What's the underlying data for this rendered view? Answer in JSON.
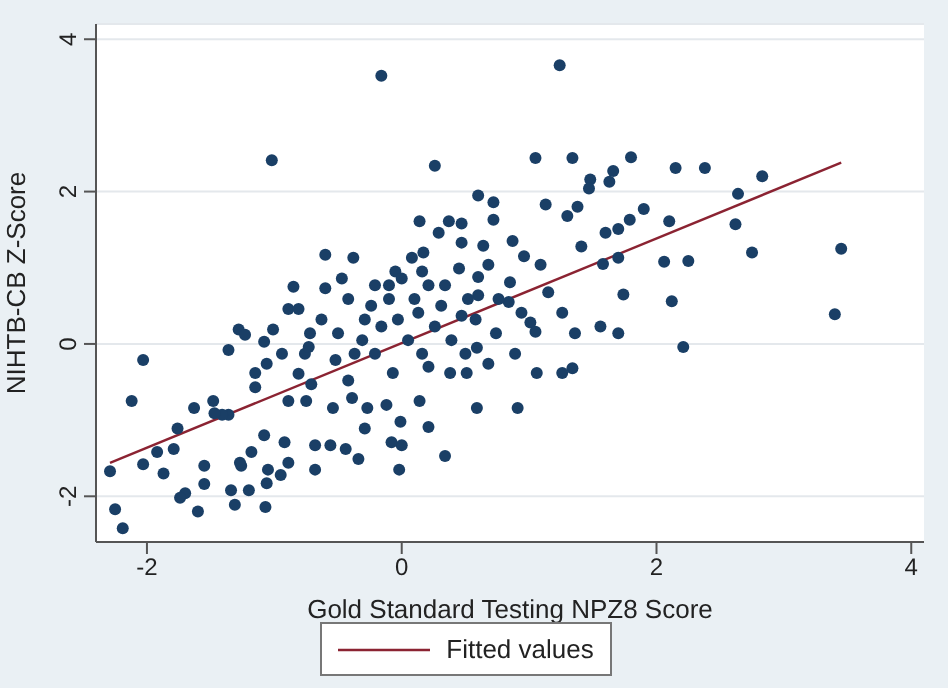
{
  "chart_data": {
    "type": "scatter",
    "xlabel": "Gold Standard Testing NPZ8 Score",
    "ylabel": "NIHTB-CB Z-Score",
    "xlim": [
      -2.4,
      4.1
    ],
    "ylim": [
      -2.6,
      4.2
    ],
    "xticks": [
      -2,
      0,
      2,
      4
    ],
    "yticks": [
      -2,
      0,
      2,
      4
    ],
    "grid": "y",
    "legend": "bottom",
    "series": [
      {
        "marker": "circle",
        "color": "#1a3f66",
        "x": [
          -0.16,
          1.24,
          -1.02,
          0.26,
          1.05,
          1.34,
          1.8,
          2.15,
          2.38,
          2.83,
          2.64,
          2.62,
          2.75,
          3.45,
          3.4,
          2.21,
          2.12,
          2.06,
          2.25,
          2.1,
          1.9,
          1.79,
          1.66,
          1.63,
          1.48,
          1.47,
          1.38,
          1.3,
          1.13,
          1.6,
          1.7,
          1.41,
          1.7,
          1.58,
          1.74,
          1.56,
          1.7,
          1.34,
          1.26,
          1.06,
          1.36,
          1.26,
          1.15,
          1.09,
          0.96,
          0.87,
          0.72,
          0.72,
          0.6,
          0.47,
          0.37,
          0.29,
          0.14,
          0.17,
          0.47,
          0.64,
          0.6,
          0.68,
          0.85,
          0.84,
          0.74,
          0.89,
          0.68,
          0.59,
          0.91,
          0.59,
          0.34,
          0.21,
          0.14,
          -0.01,
          0,
          -0.02,
          -0.08,
          -0.07,
          -0.12,
          -0.29,
          -0.34,
          -0.44,
          -0.27,
          -0.39,
          -0.54,
          -0.56,
          -0.68,
          -0.68,
          -0.75,
          -0.89,
          -0.92,
          -0.89,
          -0.95,
          -1.05,
          -1.07,
          -1.06,
          -1.08,
          -1.18,
          -1.2,
          -1.26,
          -1.34,
          -1.31,
          -1.27,
          -1.36,
          -1.41,
          -1.47,
          -1.55,
          -1.55,
          -1.6,
          -1.7,
          -1.74,
          -1.76,
          -1.79,
          -1.87,
          -1.92,
          -2.03,
          -2.12,
          -2.03,
          -2.29,
          -2.25,
          -2.19,
          -1.63,
          -1.48,
          -1.36,
          -1.28,
          -1.23,
          -1.15,
          -1.15,
          -1.08,
          -1.01,
          -1.06,
          -0.94,
          -0.89,
          -0.85,
          -0.81,
          -0.72,
          -0.76,
          -0.81,
          -0.71,
          -0.73,
          -0.6,
          -0.6,
          -0.47,
          -0.38,
          -0.42,
          -0.63,
          -0.5,
          -0.52,
          -0.42,
          -0.24,
          -0.1,
          -0.21,
          -0.05,
          0,
          0.1,
          -0.03,
          -0.16,
          -0.31,
          -0.37,
          -0.21,
          0.05,
          0.16,
          0.21,
          0.26,
          0.31,
          0.21,
          0.39,
          0.5,
          0.38,
          0.51,
          0.47,
          0.58,
          0.6,
          0.76,
          0.94,
          1.01,
          1.05,
          0.52,
          0.13,
          -0.1,
          -0.29,
          0.08,
          0.16,
          0.45,
          0.34
        ],
        "values": [
          3.52,
          3.66,
          2.41,
          2.34,
          2.44,
          2.44,
          2.45,
          2.31,
          2.31,
          2.2,
          1.97,
          1.57,
          1.2,
          1.25,
          0.39,
          -0.04,
          0.56,
          1.08,
          1.09,
          1.61,
          1.77,
          1.63,
          2.27,
          2.13,
          2.16,
          2.04,
          1.8,
          1.68,
          1.83,
          1.46,
          1.51,
          1.28,
          1.13,
          1.05,
          0.65,
          0.23,
          0.14,
          -0.32,
          -0.38,
          -0.38,
          0.14,
          0.41,
          0.68,
          1.04,
          1.15,
          1.35,
          1.63,
          1.86,
          1.95,
          1.58,
          1.61,
          1.46,
          1.61,
          1.2,
          1.33,
          1.29,
          0.88,
          1.04,
          0.81,
          0.55,
          0.14,
          -0.13,
          -0.26,
          -0.05,
          -0.84,
          -0.84,
          -1.47,
          -1.09,
          -0.75,
          -1.02,
          -1.33,
          -1.65,
          -1.29,
          -0.38,
          -0.8,
          -1.11,
          -1.51,
          -1.38,
          -0.84,
          -0.71,
          -0.84,
          -1.33,
          -1.65,
          -1.33,
          -0.75,
          -0.75,
          -1.29,
          -1.56,
          -1.72,
          -1.65,
          -2.14,
          -1.83,
          -1.2,
          -1.42,
          -1.92,
          -1.6,
          -1.92,
          -2.11,
          -1.56,
          -0.93,
          -0.93,
          -0.91,
          -1.6,
          -1.84,
          -2.2,
          -1.96,
          -2.02,
          -1.11,
          -1.38,
          -1.7,
          -1.42,
          -1.58,
          -0.75,
          -0.21,
          -1.67,
          -2.17,
          -2.42,
          -0.84,
          -0.75,
          -0.08,
          0.19,
          0.12,
          -0.38,
          -0.57,
          0.03,
          0.19,
          -0.26,
          -0.13,
          0.46,
          0.75,
          0.46,
          0.14,
          -0.13,
          -0.39,
          -0.53,
          -0.04,
          1.17,
          0.73,
          0.86,
          1.13,
          0.59,
          0.32,
          0.14,
          -0.21,
          -0.48,
          0.5,
          0.77,
          0.77,
          0.95,
          0.86,
          0.59,
          0.32,
          0.23,
          0.05,
          -0.13,
          -0.13,
          0.05,
          -0.13,
          -0.3,
          0.23,
          0.5,
          0.77,
          0.05,
          -0.13,
          -0.38,
          -0.38,
          0.37,
          0.32,
          0.64,
          0.59,
          0.41,
          0.28,
          0.16,
          0.59,
          0.41,
          0.59,
          0.32,
          1.13,
          0.95,
          0.99,
          0.77
        ]
      },
      {
        "type": "line",
        "marker": "none",
        "name": "Fitted values",
        "color": "#8b2332",
        "x": [
          -2.29,
          3.45
        ],
        "values": [
          -1.56,
          2.38
        ]
      }
    ]
  }
}
